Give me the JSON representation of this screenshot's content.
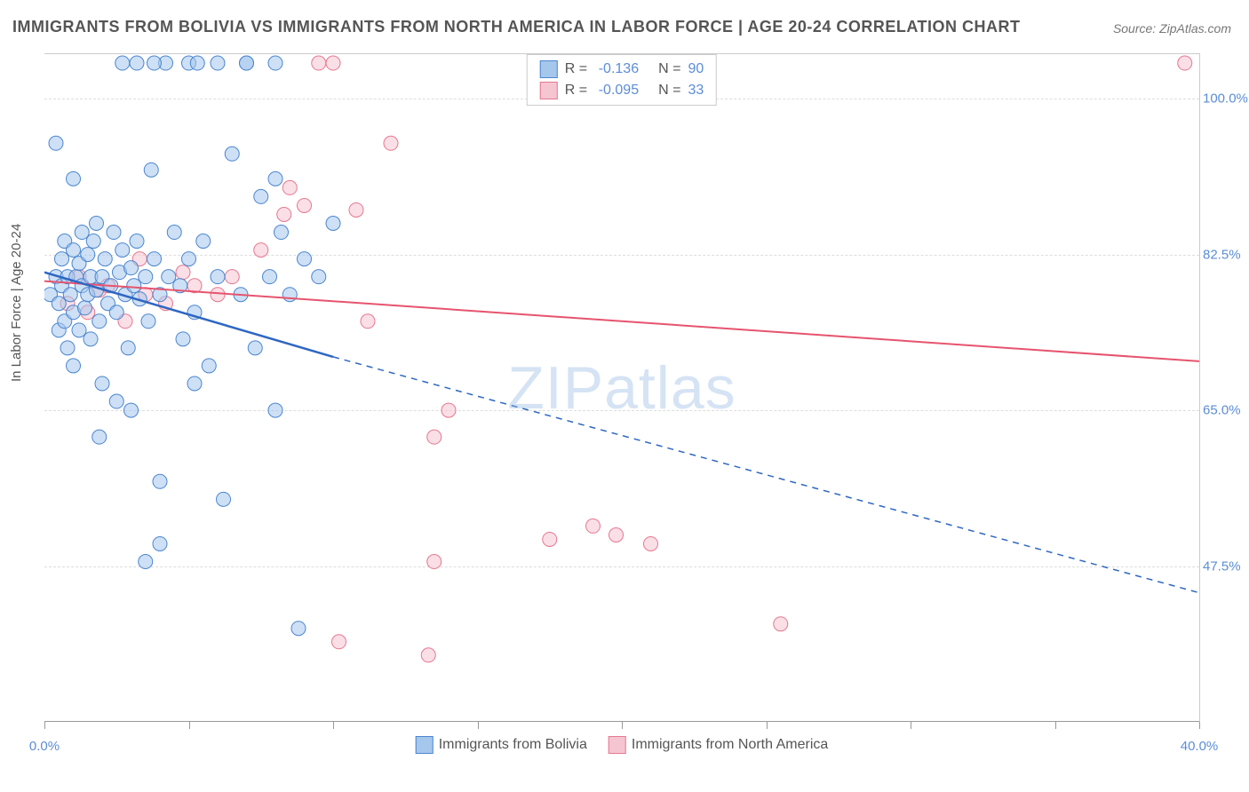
{
  "title": "IMMIGRANTS FROM BOLIVIA VS IMMIGRANTS FROM NORTH AMERICA IN LABOR FORCE | AGE 20-24 CORRELATION CHART",
  "source_label": "Source: ZipAtlas.com",
  "ylabel": "In Labor Force | Age 20-24",
  "watermark": "ZIPatlas",
  "chart": {
    "type": "scatter-correlation",
    "xlim": [
      0,
      40
    ],
    "ylim": [
      30,
      105
    ],
    "y_gridlines": [
      47.5,
      65.0,
      82.5,
      100.0
    ],
    "y_tick_labels": [
      "47.5%",
      "65.0%",
      "82.5%",
      "100.0%"
    ],
    "x_ticks": [
      0,
      5,
      10,
      15,
      20,
      25,
      30,
      35,
      40
    ],
    "x_tick_labels_shown": {
      "0": "0.0%",
      "40": "40.0%"
    },
    "background_color": "#ffffff",
    "grid_color": "#dddddd",
    "axis_color": "#999999",
    "tick_label_color": "#5b8dd6",
    "marker_radius": 8,
    "marker_opacity": 0.55,
    "line_width": 2
  },
  "series": {
    "blue": {
      "label": "Immigrants from Bolivia",
      "marker_fill": "#a6c7ec",
      "marker_stroke": "#4a86d0",
      "line_color": "#2e67c2",
      "R": "-0.136",
      "N": "90",
      "trend": {
        "x1": 0,
        "y1": 80.5,
        "x2_solid": 10,
        "y2_solid": 71.0,
        "x2_dash": 40,
        "y2_dash": 44.5
      },
      "points": [
        [
          0.2,
          78
        ],
        [
          0.4,
          80
        ],
        [
          0.5,
          77
        ],
        [
          0.5,
          74
        ],
        [
          0.6,
          82
        ],
        [
          0.6,
          79
        ],
        [
          0.7,
          75
        ],
        [
          0.7,
          84
        ],
        [
          0.8,
          80
        ],
        [
          0.8,
          72
        ],
        [
          0.9,
          78
        ],
        [
          1.0,
          83
        ],
        [
          1.0,
          70
        ],
        [
          1.0,
          76
        ],
        [
          1.1,
          80
        ],
        [
          1.2,
          81.5
        ],
        [
          1.2,
          74
        ],
        [
          1.3,
          79
        ],
        [
          1.3,
          85
        ],
        [
          1.4,
          76.5
        ],
        [
          1.5,
          78
        ],
        [
          1.5,
          82.5
        ],
        [
          1.6,
          80
        ],
        [
          1.6,
          73
        ],
        [
          1.7,
          84
        ],
        [
          1.8,
          78.5
        ],
        [
          1.8,
          86
        ],
        [
          1.9,
          75
        ],
        [
          2.0,
          80
        ],
        [
          2.0,
          68
        ],
        [
          2.1,
          82
        ],
        [
          2.2,
          77
        ],
        [
          2.3,
          79
        ],
        [
          2.4,
          85
        ],
        [
          2.5,
          76
        ],
        [
          2.6,
          80.5
        ],
        [
          2.7,
          83
        ],
        [
          2.8,
          78
        ],
        [
          2.9,
          72
        ],
        [
          3.0,
          81
        ],
        [
          3.0,
          65
        ],
        [
          3.1,
          79
        ],
        [
          3.2,
          84
        ],
        [
          3.3,
          77.5
        ],
        [
          3.5,
          80
        ],
        [
          3.6,
          75
        ],
        [
          3.7,
          92
        ],
        [
          3.8,
          82
        ],
        [
          4.0,
          78
        ],
        [
          4.0,
          57
        ],
        [
          4.2,
          104
        ],
        [
          4.3,
          80
        ],
        [
          4.5,
          85
        ],
        [
          4.7,
          79
        ],
        [
          4.8,
          73
        ],
        [
          5.0,
          104
        ],
        [
          5.0,
          82
        ],
        [
          5.2,
          76
        ],
        [
          5.3,
          104
        ],
        [
          5.5,
          84
        ],
        [
          5.7,
          70
        ],
        [
          6.0,
          104
        ],
        [
          6.0,
          80
        ],
        [
          6.2,
          55
        ],
        [
          6.5,
          93.8
        ],
        [
          6.8,
          78
        ],
        [
          7.0,
          104
        ],
        [
          7.0,
          104
        ],
        [
          7.3,
          72
        ],
        [
          7.5,
          89
        ],
        [
          7.8,
          80
        ],
        [
          8.0,
          91
        ],
        [
          8.0,
          104
        ],
        [
          8.0,
          65
        ],
        [
          8.2,
          85
        ],
        [
          8.5,
          78
        ],
        [
          8.8,
          40.5
        ],
        [
          9.0,
          82
        ],
        [
          9.5,
          80
        ],
        [
          10.0,
          86
        ],
        [
          2.7,
          104
        ],
        [
          3.2,
          104
        ],
        [
          3.8,
          104
        ],
        [
          0.4,
          95
        ],
        [
          1.0,
          91
        ],
        [
          4.0,
          50
        ],
        [
          3.5,
          48
        ],
        [
          5.2,
          68
        ],
        [
          1.9,
          62
        ],
        [
          2.5,
          66
        ]
      ]
    },
    "pink": {
      "label": "Immigrants from North America",
      "marker_fill": "#f6c5d2",
      "marker_stroke": "#e6788f",
      "line_color": "#e6546e",
      "R": "-0.095",
      "N": "33",
      "trend": {
        "x1": 0,
        "y1": 79.5,
        "x2": 40,
        "y2": 70.5
      },
      "points": [
        [
          0.8,
          77
        ],
        [
          1.2,
          80
        ],
        [
          1.5,
          76
        ],
        [
          1.9,
          78.5
        ],
        [
          2.2,
          79
        ],
        [
          2.8,
          75
        ],
        [
          3.3,
          82
        ],
        [
          3.5,
          78
        ],
        [
          4.2,
          77
        ],
        [
          4.8,
          80.5
        ],
        [
          5.2,
          79
        ],
        [
          6.0,
          78
        ],
        [
          7.5,
          83
        ],
        [
          8.3,
          87
        ],
        [
          8.5,
          90
        ],
        [
          9.0,
          88
        ],
        [
          9.5,
          104
        ],
        [
          10.0,
          104
        ],
        [
          10.8,
          87.5
        ],
        [
          11.2,
          75
        ],
        [
          12.0,
          95
        ],
        [
          13.3,
          37.5
        ],
        [
          13.5,
          48
        ],
        [
          13.5,
          62
        ],
        [
          17.5,
          50.5
        ],
        [
          19.0,
          52
        ],
        [
          19.8,
          51
        ],
        [
          21.0,
          50
        ],
        [
          25.5,
          41
        ],
        [
          10.2,
          39
        ],
        [
          6.5,
          80
        ],
        [
          14.0,
          65
        ],
        [
          39.5,
          104
        ]
      ]
    }
  },
  "legend_top": {
    "R_label": "R =",
    "N_label": "N ="
  }
}
